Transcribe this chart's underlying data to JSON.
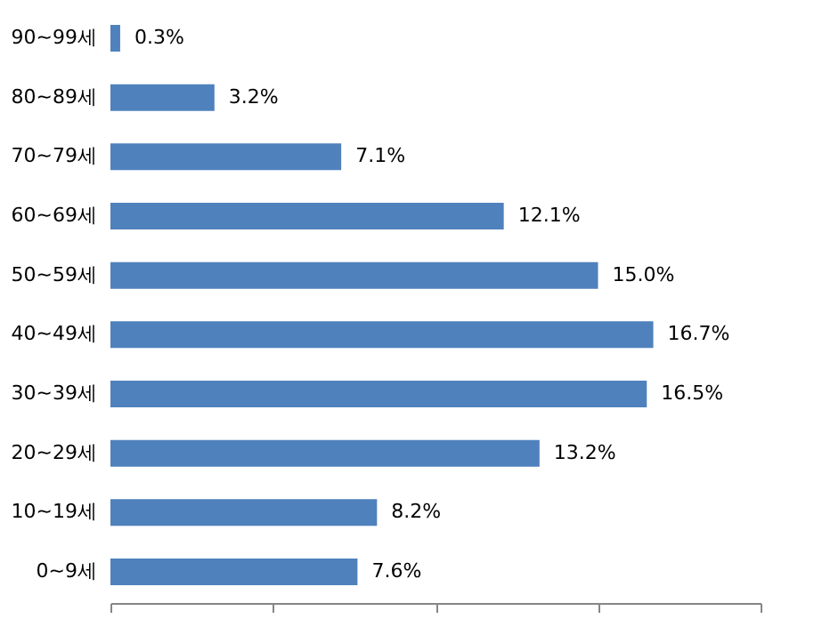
{
  "chart_data": {
    "type": "bar",
    "orientation": "horizontal",
    "categories": [
      "90~99세",
      "80~89세",
      "70~79세",
      "60~69세",
      "50~59세",
      "40~49세",
      "30~39세",
      "20~29세",
      "10~19세",
      "0~9세"
    ],
    "values": [
      0.3,
      3.2,
      7.1,
      12.1,
      15.0,
      16.7,
      16.5,
      13.2,
      8.2,
      7.6
    ],
    "value_labels": [
      "0.3%",
      "3.2%",
      "7.1%",
      "12.1%",
      "15.0%",
      "16.7%",
      "16.5%",
      "13.2%",
      "8.2%",
      "7.6%"
    ],
    "color": "#4f81bd",
    "xlim": [
      0,
      20
    ],
    "xticks": [
      {
        "value": 0,
        "label": null
      },
      {
        "value": 5,
        "label": null
      },
      {
        "value": 10,
        "label": null
      },
      {
        "value": 15,
        "label": null
      },
      {
        "value": 20,
        "label": null
      }
    ],
    "tick_labels": "y",
    "grid": false
  }
}
